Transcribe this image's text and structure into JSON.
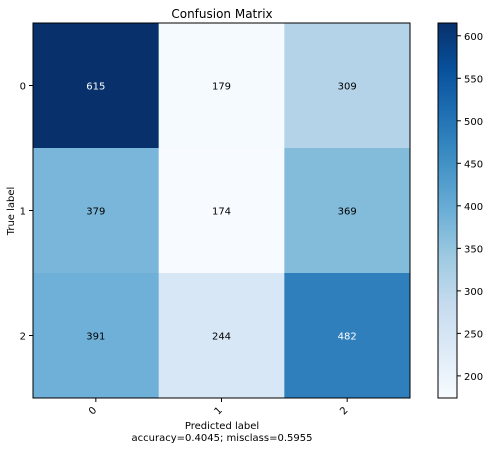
{
  "chart_data": {
    "type": "heatmap",
    "title": "Confusion Matrix",
    "xlabel": "Predicted label",
    "ylabel": "True label",
    "x_categories": [
      "0",
      "1",
      "2"
    ],
    "y_categories": [
      "0",
      "1",
      "2"
    ],
    "values": [
      [
        615,
        179,
        309
      ],
      [
        379,
        174,
        369
      ],
      [
        391,
        244,
        482
      ]
    ],
    "colormap": "Blues",
    "colorbar": {
      "min": 174,
      "max": 615,
      "ticks": [
        200,
        250,
        300,
        350,
        400,
        450,
        500,
        550,
        600
      ]
    },
    "grid": false
  },
  "footer": {
    "accuracy_text": "accuracy=0.4045; misclass=0.5955"
  }
}
